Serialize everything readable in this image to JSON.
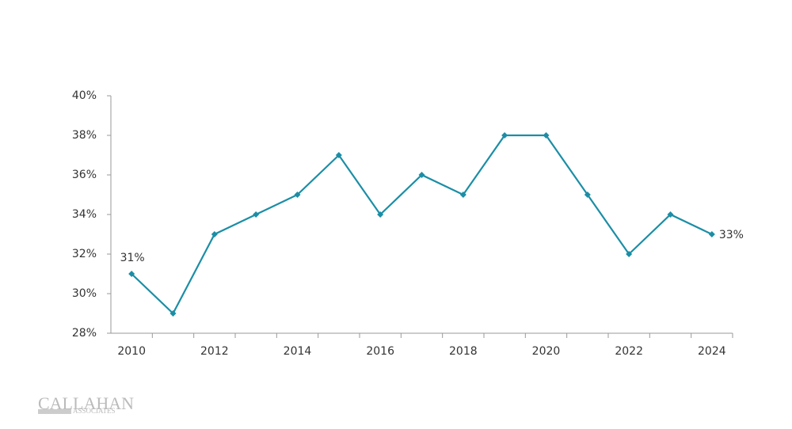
{
  "chart_data": {
    "type": "line",
    "categories": [
      "2010",
      null,
      "2012",
      null,
      "2014",
      null,
      "2016",
      null,
      "2018",
      null,
      "2020",
      null,
      "2022",
      null,
      "2024"
    ],
    "series": [
      {
        "color": "#1b8ea6",
        "values": [
          31,
          29,
          33,
          34,
          35,
          37,
          34,
          36,
          35,
          38,
          38,
          35,
          32,
          34,
          33
        ],
        "value_labels": [
          "31%",
          null,
          null,
          null,
          null,
          null,
          null,
          null,
          null,
          null,
          null,
          null,
          null,
          null,
          "33%"
        ]
      }
    ],
    "ylim": [
      28,
      40
    ],
    "yticks": [
      {
        "value": 28,
        "label": "28%"
      },
      {
        "value": 30,
        "label": "30%"
      },
      {
        "value": 32,
        "label": "32%"
      },
      {
        "value": 34,
        "label": "34%"
      },
      {
        "value": 36,
        "label": "36%"
      },
      {
        "value": 38,
        "label": "38%"
      },
      {
        "value": 40,
        "label": "40%"
      }
    ],
    "grid": false
  },
  "logo": {
    "name": "CALLAHAN",
    "sub": "ASSOCIATES"
  }
}
